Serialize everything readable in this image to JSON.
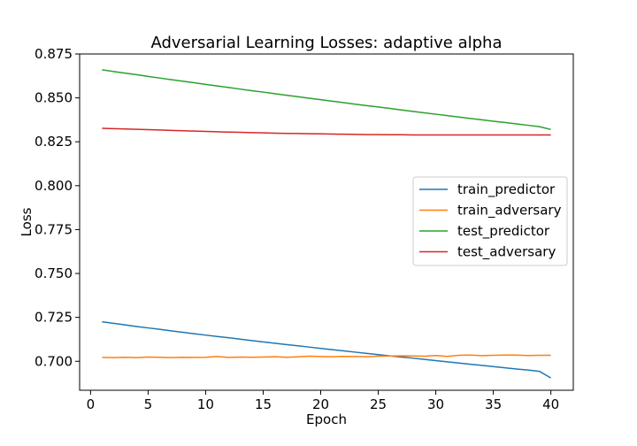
{
  "chart_data": {
    "type": "line",
    "title": "Adversarial Learning Losses: adaptive alpha",
    "xlabel": "Epoch",
    "ylabel": "Loss",
    "xlim": [
      -0.95,
      41.95
    ],
    "ylim": [
      0.6835,
      0.875
    ],
    "xticks": [
      0,
      5,
      10,
      15,
      20,
      25,
      30,
      35,
      40
    ],
    "yticks": [
      0.7,
      0.725,
      0.75,
      0.775,
      0.8,
      0.825,
      0.85,
      0.875
    ],
    "ytick_labels": [
      "0.700",
      "0.725",
      "0.750",
      "0.775",
      "0.800",
      "0.825",
      "0.850",
      "0.875"
    ],
    "grid": false,
    "legend_position": "center-right",
    "x": [
      1,
      2,
      3,
      4,
      5,
      6,
      7,
      8,
      9,
      10,
      11,
      12,
      13,
      14,
      15,
      16,
      17,
      18,
      19,
      20,
      21,
      22,
      23,
      24,
      25,
      26,
      27,
      28,
      29,
      30,
      31,
      32,
      33,
      34,
      35,
      36,
      37,
      38,
      39,
      40
    ],
    "series": [
      {
        "name": "train_predictor",
        "color": "#1f77b4",
        "values": [
          0.7225,
          0.7216,
          0.7207,
          0.7198,
          0.719,
          0.7182,
          0.7173,
          0.7165,
          0.7157,
          0.7149,
          0.7141,
          0.7134,
          0.7126,
          0.7118,
          0.711,
          0.7103,
          0.7095,
          0.7088,
          0.7081,
          0.7073,
          0.7066,
          0.7059,
          0.7052,
          0.7045,
          0.7038,
          0.7031,
          0.7024,
          0.7018,
          0.7011,
          0.7004,
          0.6997,
          0.699,
          0.6983,
          0.6977,
          0.697,
          0.6963,
          0.6956,
          0.695,
          0.6943,
          0.6905
        ]
      },
      {
        "name": "train_adversary",
        "color": "#ff7f0e",
        "values": [
          0.7022,
          0.7021,
          0.7023,
          0.7021,
          0.7024,
          0.7023,
          0.7021,
          0.7023,
          0.7022,
          0.7023,
          0.7027,
          0.7022,
          0.7024,
          0.7023,
          0.7024,
          0.7026,
          0.7023,
          0.7025,
          0.7029,
          0.7027,
          0.7026,
          0.7028,
          0.7027,
          0.7026,
          0.7029,
          0.703,
          0.7031,
          0.703,
          0.7029,
          0.7033,
          0.7028,
          0.7034,
          0.7035,
          0.7032,
          0.7034,
          0.7035,
          0.7035,
          0.7033,
          0.7034,
          0.7034
        ]
      },
      {
        "name": "test_predictor",
        "color": "#2ca02c",
        "values": [
          0.866,
          0.865,
          0.8641,
          0.8632,
          0.8622,
          0.8613,
          0.8604,
          0.8595,
          0.8586,
          0.8577,
          0.8568,
          0.8559,
          0.855,
          0.8541,
          0.8533,
          0.8524,
          0.8515,
          0.8507,
          0.8498,
          0.849,
          0.8481,
          0.8473,
          0.8464,
          0.8456,
          0.8448,
          0.844,
          0.8431,
          0.8423,
          0.8415,
          0.8407,
          0.8399,
          0.8391,
          0.8383,
          0.8375,
          0.8367,
          0.836,
          0.8352,
          0.8344,
          0.8336,
          0.832
        ]
      },
      {
        "name": "test_adversary",
        "color": "#d62728",
        "values": [
          0.8327,
          0.8325,
          0.8323,
          0.8321,
          0.8319,
          0.8317,
          0.8315,
          0.8313,
          0.8311,
          0.8309,
          0.8307,
          0.8305,
          0.8304,
          0.8302,
          0.8301,
          0.8299,
          0.8298,
          0.8297,
          0.8296,
          0.8295,
          0.8294,
          0.8293,
          0.8292,
          0.8291,
          0.8291,
          0.829,
          0.829,
          0.8289,
          0.8289,
          0.8289,
          0.8289,
          0.8289,
          0.8289,
          0.8289,
          0.8289,
          0.8289,
          0.8289,
          0.8289,
          0.8289,
          0.8289
        ]
      }
    ]
  }
}
